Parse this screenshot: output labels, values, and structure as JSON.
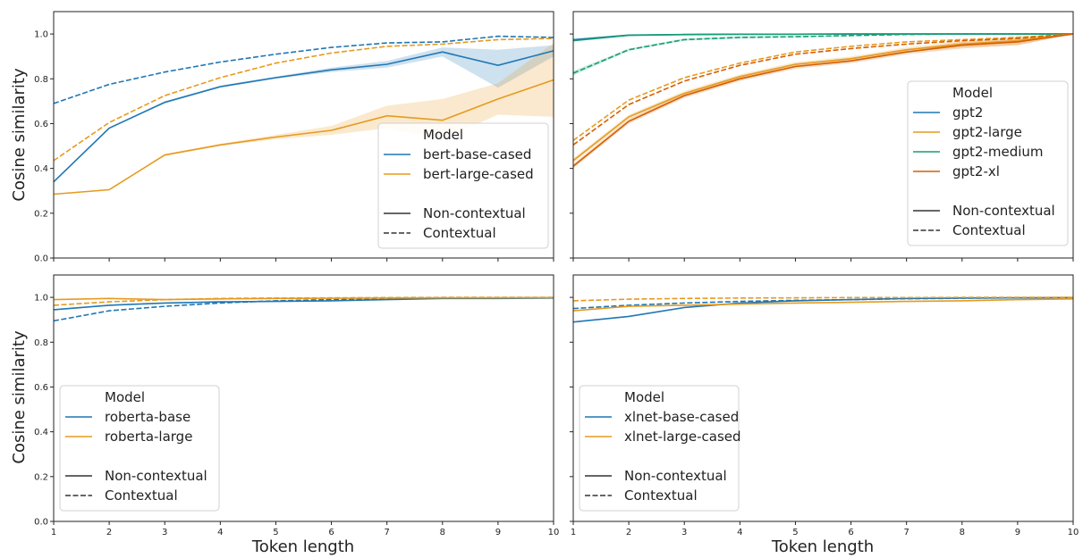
{
  "figure": {
    "ylabel": "Cosine similarity",
    "xlabel": "Token length"
  },
  "legend_common": {
    "title": "Model",
    "style_labels": [
      "Non-contextual",
      "Contextual"
    ]
  },
  "chart_data": [
    {
      "type": "line",
      "id": "bert",
      "x": [
        1,
        2,
        3,
        4,
        5,
        6,
        7,
        8,
        9,
        10
      ],
      "xlim": [
        1,
        10
      ],
      "ylim": [
        0,
        1.1
      ],
      "yticks": [
        0.0,
        0.2,
        0.4,
        0.6,
        0.8,
        1.0
      ],
      "xticks": [
        1,
        2,
        3,
        4,
        5,
        6,
        7,
        8,
        9,
        10
      ],
      "legend_position": "lower-right",
      "series": [
        {
          "name": "bert-base-cased",
          "color": "#1f77b4",
          "style": "solid",
          "values": [
            0.34,
            0.58,
            0.695,
            0.765,
            0.805,
            0.84,
            0.865,
            0.92,
            0.86,
            0.925
          ],
          "ci_low": [
            0.34,
            0.58,
            0.69,
            0.76,
            0.8,
            0.83,
            0.85,
            0.9,
            0.76,
            0.9
          ],
          "ci_high": [
            0.34,
            0.58,
            0.7,
            0.77,
            0.81,
            0.85,
            0.88,
            0.94,
            0.93,
            0.95
          ]
        },
        {
          "name": "bert-large-cased",
          "color": "#e69a1f",
          "style": "solid",
          "values": [
            0.285,
            0.305,
            0.46,
            0.505,
            0.54,
            0.57,
            0.635,
            0.615,
            0.71,
            0.795
          ],
          "ci_low": [
            0.285,
            0.305,
            0.455,
            0.5,
            0.53,
            0.55,
            0.58,
            0.53,
            0.64,
            0.63
          ],
          "ci_high": [
            0.285,
            0.305,
            0.465,
            0.51,
            0.55,
            0.59,
            0.68,
            0.71,
            0.78,
            0.96
          ]
        },
        {
          "name": "bert-base-cased",
          "color": "#1f77b4",
          "style": "dashed",
          "values": [
            0.69,
            0.775,
            0.83,
            0.875,
            0.91,
            0.94,
            0.96,
            0.965,
            0.99,
            0.985
          ]
        },
        {
          "name": "bert-large-cased",
          "color": "#e69a1f",
          "style": "dashed",
          "values": [
            0.435,
            0.605,
            0.725,
            0.805,
            0.87,
            0.915,
            0.945,
            0.955,
            0.975,
            0.98
          ]
        }
      ],
      "legend_models": [
        {
          "name": "bert-base-cased",
          "color": "#1f77b4"
        },
        {
          "name": "bert-large-cased",
          "color": "#e69a1f"
        }
      ]
    },
    {
      "type": "line",
      "id": "gpt2",
      "x": [
        1,
        2,
        3,
        4,
        5,
        6,
        7,
        8,
        9,
        10
      ],
      "xlim": [
        1,
        10
      ],
      "ylim": [
        0,
        1.1
      ],
      "yticks": [
        0.0,
        0.2,
        0.4,
        0.6,
        0.8,
        1.0
      ],
      "xticks": [
        1,
        2,
        3,
        4,
        5,
        6,
        7,
        8,
        9,
        10
      ],
      "legend_position": "center-right",
      "series": [
        {
          "name": "gpt2",
          "color": "#1f77b4",
          "style": "solid",
          "values": [
            0.975,
            0.995,
            0.998,
            0.999,
            0.999,
            1.0,
            1.0,
            1.0,
            1.0,
            1.0
          ]
        },
        {
          "name": "gpt2-medium",
          "color": "#159e74",
          "style": "solid",
          "values": [
            0.97,
            0.994,
            0.997,
            0.999,
            0.999,
            1.0,
            1.0,
            1.0,
            1.0,
            1.0
          ]
        },
        {
          "name": "gpt2-medium",
          "color": "#159e74",
          "style": "dashed",
          "values": [
            0.825,
            0.93,
            0.975,
            0.985,
            0.988,
            0.993,
            0.998,
            1.0,
            1.0,
            1.0
          ],
          "ci_low": [
            0.815,
            0.925,
            0.97,
            0.98,
            0.985,
            0.99,
            0.996,
            0.999,
            1.0,
            1.0
          ],
          "ci_high": [
            0.835,
            0.935,
            0.98,
            0.99,
            0.99,
            0.996,
            1.0,
            1.0,
            1.0,
            1.0
          ]
        },
        {
          "name": "gpt2-large",
          "color": "#e69a1f",
          "style": "dashed",
          "values": [
            0.525,
            0.705,
            0.805,
            0.87,
            0.92,
            0.945,
            0.965,
            0.975,
            0.985,
            1.0
          ]
        },
        {
          "name": "gpt2-xl",
          "color": "#d55e00",
          "style": "dashed",
          "values": [
            0.505,
            0.685,
            0.79,
            0.86,
            0.91,
            0.935,
            0.955,
            0.97,
            0.98,
            1.0
          ]
        },
        {
          "name": "gpt2-large",
          "color": "#e69a1f",
          "style": "solid",
          "values": [
            0.435,
            0.63,
            0.735,
            0.81,
            0.865,
            0.89,
            0.93,
            0.955,
            0.97,
            1.0
          ],
          "ci_low": [
            0.425,
            0.62,
            0.725,
            0.8,
            0.855,
            0.88,
            0.92,
            0.94,
            0.95,
            1.0
          ],
          "ci_high": [
            0.445,
            0.64,
            0.745,
            0.82,
            0.875,
            0.9,
            0.94,
            0.97,
            0.99,
            1.0
          ]
        },
        {
          "name": "gpt2-xl",
          "color": "#d55e00",
          "style": "solid",
          "values": [
            0.41,
            0.61,
            0.725,
            0.8,
            0.855,
            0.88,
            0.92,
            0.95,
            0.965,
            1.0
          ],
          "ci_low": [
            0.4,
            0.6,
            0.715,
            0.79,
            0.845,
            0.87,
            0.91,
            0.935,
            0.95,
            1.0
          ],
          "ci_high": [
            0.42,
            0.62,
            0.735,
            0.81,
            0.865,
            0.89,
            0.93,
            0.965,
            0.98,
            1.0
          ]
        }
      ],
      "legend_models": [
        {
          "name": "gpt2",
          "color": "#1f77b4"
        },
        {
          "name": "gpt2-large",
          "color": "#e69a1f"
        },
        {
          "name": "gpt2-medium",
          "color": "#159e74"
        },
        {
          "name": "gpt2-xl",
          "color": "#d55e00"
        }
      ]
    },
    {
      "type": "line",
      "id": "roberta",
      "x": [
        1,
        2,
        3,
        4,
        5,
        6,
        7,
        8,
        9,
        10
      ],
      "xlim": [
        1,
        10
      ],
      "ylim": [
        0,
        1.1
      ],
      "yticks": [
        0.0,
        0.2,
        0.4,
        0.6,
        0.8,
        1.0
      ],
      "xticks": [
        1,
        2,
        3,
        4,
        5,
        6,
        7,
        8,
        9,
        10
      ],
      "legend_position": "lower-left",
      "series": [
        {
          "name": "roberta-base",
          "color": "#1f77b4",
          "style": "solid",
          "values": [
            0.945,
            0.965,
            0.975,
            0.98,
            0.982,
            0.985,
            0.99,
            0.995,
            0.995,
            0.997
          ]
        },
        {
          "name": "roberta-base",
          "color": "#1f77b4",
          "style": "dashed",
          "values": [
            0.895,
            0.94,
            0.96,
            0.975,
            0.985,
            0.99,
            0.995,
            0.997,
            0.998,
            0.999
          ]
        },
        {
          "name": "roberta-large",
          "color": "#e69a1f",
          "style": "solid",
          "values": [
            0.99,
            0.995,
            0.99,
            0.993,
            0.995,
            0.996,
            0.997,
            0.998,
            0.998,
            0.999
          ]
        },
        {
          "name": "roberta-large",
          "color": "#e69a1f",
          "style": "dashed",
          "values": [
            0.965,
            0.98,
            0.99,
            0.995,
            0.997,
            0.998,
            0.999,
            1.0,
            1.0,
            1.0
          ]
        }
      ],
      "legend_models": [
        {
          "name": "roberta-base",
          "color": "#1f77b4"
        },
        {
          "name": "roberta-large",
          "color": "#e69a1f"
        }
      ]
    },
    {
      "type": "line",
      "id": "xlnet",
      "x": [
        1,
        2,
        3,
        4,
        5,
        6,
        7,
        8,
        9,
        10
      ],
      "xlim": [
        1,
        10
      ],
      "ylim": [
        0,
        1.1
      ],
      "yticks": [
        0.0,
        0.2,
        0.4,
        0.6,
        0.8,
        1.0
      ],
      "xticks": [
        1,
        2,
        3,
        4,
        5,
        6,
        7,
        8,
        9,
        10
      ],
      "legend_position": "lower-left",
      "series": [
        {
          "name": "xlnet-base-cased",
          "color": "#1f77b4",
          "style": "solid",
          "values": [
            0.89,
            0.915,
            0.955,
            0.975,
            0.985,
            0.99,
            0.995,
            0.997,
            0.998,
            0.999
          ]
        },
        {
          "name": "xlnet-base-cased",
          "color": "#1f77b4",
          "style": "dashed",
          "values": [
            0.95,
            0.965,
            0.975,
            0.982,
            0.987,
            0.99,
            0.994,
            0.996,
            0.998,
            0.999
          ]
        },
        {
          "name": "xlnet-large-cased",
          "color": "#e69a1f",
          "style": "solid",
          "values": [
            0.94,
            0.96,
            0.965,
            0.97,
            0.975,
            0.978,
            0.982,
            0.985,
            0.99,
            0.993
          ]
        },
        {
          "name": "xlnet-large-cased",
          "color": "#e69a1f",
          "style": "dashed",
          "values": [
            0.985,
            0.992,
            0.995,
            0.997,
            0.998,
            0.999,
            0.999,
            1.0,
            1.0,
            1.0
          ]
        }
      ],
      "legend_models": [
        {
          "name": "xlnet-base-cased",
          "color": "#1f77b4"
        },
        {
          "name": "xlnet-large-cased",
          "color": "#e69a1f"
        }
      ]
    }
  ]
}
